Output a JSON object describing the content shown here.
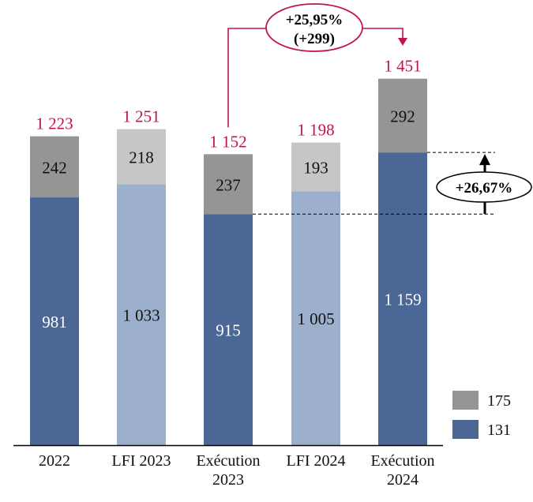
{
  "chart_data": {
    "type": "bar",
    "stacked": true,
    "categories": [
      [
        "2022"
      ],
      [
        "LFI 2023"
      ],
      [
        "Exécution",
        "2023"
      ],
      [
        "LFI 2024"
      ],
      [
        "Exécution",
        "2024"
      ]
    ],
    "series": [
      {
        "name": "131",
        "values": [
          981,
          1033,
          915,
          1005,
          1159
        ],
        "value_labels": [
          "981",
          "1 033",
          "915",
          "1 005",
          "1 159"
        ]
      },
      {
        "name": "175",
        "values": [
          242,
          218,
          237,
          193,
          292
        ],
        "value_labels": [
          "242",
          "218",
          "237",
          "193",
          "292"
        ]
      }
    ],
    "totals": [
      1223,
      1251,
      1152,
      1198,
      1451
    ],
    "total_labels": [
      "1 223",
      "1 251",
      "1 152",
      "1 198",
      "1 451"
    ],
    "bar_styles": [
      "execution",
      "lfi",
      "execution",
      "lfi",
      "execution"
    ],
    "ylim": [
      0,
      1550
    ],
    "legend_position": "bottom-right",
    "grid": false,
    "annotations": {
      "total_change": {
        "from": "Exécution 2023",
        "to": "Exécution 2024",
        "lines": [
          "+25,95%",
          "(+299)"
        ]
      },
      "base_change": {
        "from": "Exécution 2023",
        "to": "Exécution 2024",
        "text": "+26,67%"
      }
    }
  },
  "colors": {
    "execution_131": "#4a6796",
    "execution_175": "#959595",
    "lfi_131": "#9cb0cd",
    "lfi_175": "#c6c6c6",
    "total_label": "#c0144c",
    "label_on_dark": "#ffffff",
    "label_on_light": "#111111"
  }
}
